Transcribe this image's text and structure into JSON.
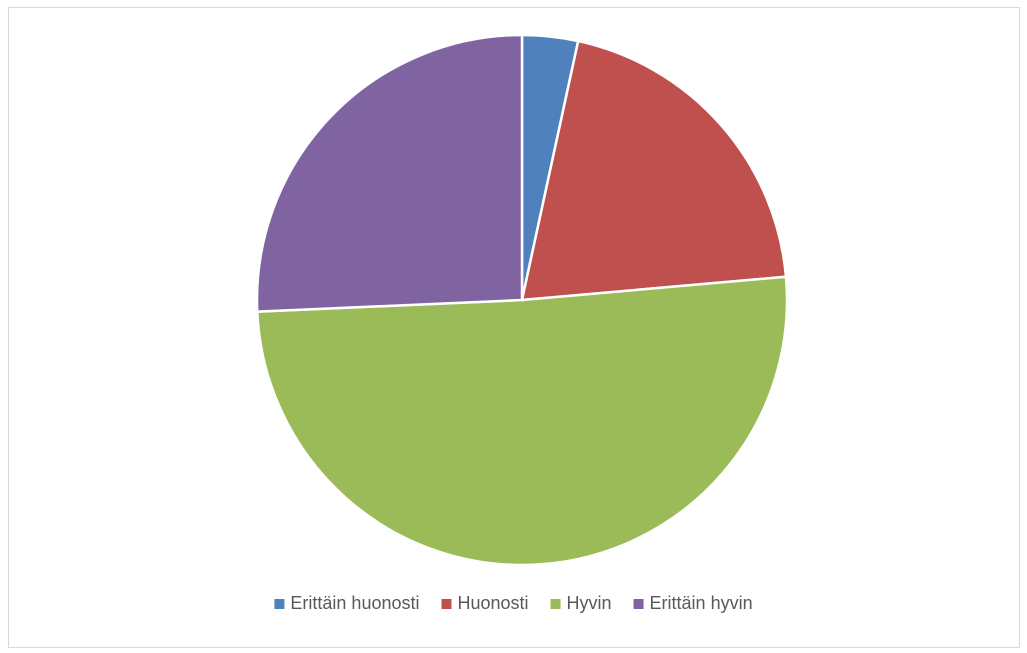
{
  "chart_data": {
    "type": "pie",
    "categories": [
      "Erittäin huonosti",
      "Huonosti",
      "Hyvin",
      "Erittäin hyvin"
    ],
    "values": [
      3.4,
      20.2,
      50.7,
      25.7
    ],
    "colors": [
      "#4f81bd",
      "#c0504d",
      "#9bbb59",
      "#8064a2"
    ],
    "legend": "bottom"
  }
}
